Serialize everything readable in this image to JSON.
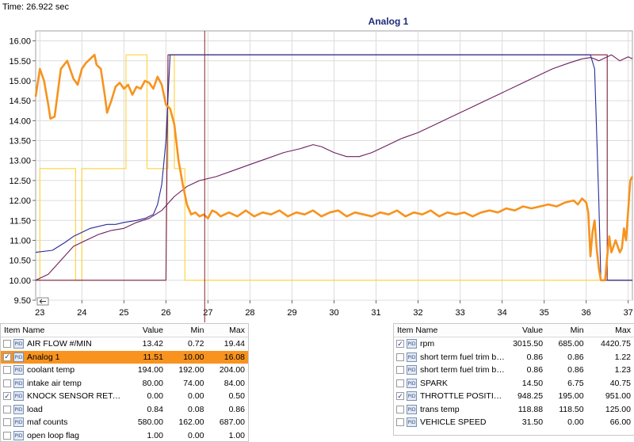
{
  "time_label": "Time: 26.922 sec",
  "chart_data": {
    "type": "line",
    "title": "Analog 1",
    "xlim": [
      22.9,
      37.1
    ],
    "ylim": [
      9.5,
      16.25
    ],
    "x_ticks": [
      "23",
      "24",
      "25",
      "26",
      "27",
      "28",
      "29",
      "30",
      "31",
      "32",
      "33",
      "34",
      "35",
      "36",
      "37"
    ],
    "y_ticks": [
      "9.50",
      "10.00",
      "10.50",
      "11.00",
      "11.50",
      "12.00",
      "12.50",
      "13.00",
      "13.50",
      "14.00",
      "14.50",
      "15.00",
      "15.50",
      "16.00"
    ],
    "cursor_x": 26.922,
    "grid": true,
    "colors": {
      "analog1": "#f7931e",
      "yellow": "#ffd23a",
      "blue": "#2a2a9a",
      "purple": "#6e1f5e",
      "maroon": "#7a2238"
    },
    "series": [
      {
        "key": "analog1",
        "points": [
          [
            22.9,
            14.6
          ],
          [
            23.0,
            15.3
          ],
          [
            23.1,
            15.0
          ],
          [
            23.2,
            14.4
          ],
          [
            23.25,
            14.05
          ],
          [
            23.35,
            14.1
          ],
          [
            23.5,
            15.3
          ],
          [
            23.65,
            15.5
          ],
          [
            23.8,
            15.05
          ],
          [
            23.9,
            14.9
          ],
          [
            24.0,
            15.3
          ],
          [
            24.1,
            15.45
          ],
          [
            24.2,
            15.55
          ],
          [
            24.3,
            15.65
          ],
          [
            24.35,
            15.4
          ],
          [
            24.45,
            15.3
          ],
          [
            24.55,
            14.6
          ],
          [
            24.6,
            14.2
          ],
          [
            24.7,
            14.5
          ],
          [
            24.8,
            14.85
          ],
          [
            24.9,
            14.95
          ],
          [
            25.0,
            14.8
          ],
          [
            25.1,
            14.9
          ],
          [
            25.2,
            14.65
          ],
          [
            25.3,
            14.85
          ],
          [
            25.4,
            14.8
          ],
          [
            25.5,
            15.0
          ],
          [
            25.6,
            14.95
          ],
          [
            25.7,
            14.8
          ],
          [
            25.8,
            15.1
          ],
          [
            25.9,
            14.9
          ],
          [
            26.0,
            14.4
          ],
          [
            26.1,
            14.3
          ],
          [
            26.2,
            13.9
          ],
          [
            26.3,
            13.0
          ],
          [
            26.4,
            12.4
          ],
          [
            26.5,
            11.9
          ],
          [
            26.6,
            11.65
          ],
          [
            26.7,
            11.7
          ],
          [
            26.8,
            11.6
          ],
          [
            26.9,
            11.65
          ],
          [
            27.0,
            11.55
          ],
          [
            27.1,
            11.75
          ],
          [
            27.2,
            11.7
          ],
          [
            27.3,
            11.6
          ],
          [
            27.5,
            11.7
          ],
          [
            27.7,
            11.6
          ],
          [
            27.9,
            11.75
          ],
          [
            28.1,
            11.6
          ],
          [
            28.3,
            11.7
          ],
          [
            28.5,
            11.65
          ],
          [
            28.7,
            11.75
          ],
          [
            28.9,
            11.6
          ],
          [
            29.1,
            11.7
          ],
          [
            29.3,
            11.65
          ],
          [
            29.5,
            11.75
          ],
          [
            29.7,
            11.6
          ],
          [
            29.9,
            11.7
          ],
          [
            30.1,
            11.75
          ],
          [
            30.3,
            11.6
          ],
          [
            30.5,
            11.7
          ],
          [
            30.7,
            11.65
          ],
          [
            30.9,
            11.6
          ],
          [
            31.1,
            11.7
          ],
          [
            31.3,
            11.65
          ],
          [
            31.5,
            11.75
          ],
          [
            31.7,
            11.6
          ],
          [
            31.9,
            11.7
          ],
          [
            32.1,
            11.65
          ],
          [
            32.3,
            11.75
          ],
          [
            32.5,
            11.6
          ],
          [
            32.7,
            11.7
          ],
          [
            32.9,
            11.65
          ],
          [
            33.1,
            11.7
          ],
          [
            33.3,
            11.6
          ],
          [
            33.5,
            11.7
          ],
          [
            33.7,
            11.75
          ],
          [
            33.9,
            11.7
          ],
          [
            34.1,
            11.8
          ],
          [
            34.3,
            11.75
          ],
          [
            34.5,
            11.85
          ],
          [
            34.7,
            11.8
          ],
          [
            34.9,
            11.85
          ],
          [
            35.1,
            11.9
          ],
          [
            35.3,
            11.85
          ],
          [
            35.5,
            11.95
          ],
          [
            35.7,
            12.0
          ],
          [
            35.8,
            11.9
          ],
          [
            35.9,
            12.05
          ],
          [
            36.0,
            11.95
          ],
          [
            36.05,
            11.7
          ],
          [
            36.1,
            10.6
          ],
          [
            36.15,
            11.2
          ],
          [
            36.2,
            11.5
          ],
          [
            36.25,
            10.8
          ],
          [
            36.3,
            10.3
          ],
          [
            36.35,
            10.0
          ],
          [
            36.45,
            10.0
          ],
          [
            36.5,
            10.6
          ],
          [
            36.55,
            11.1
          ],
          [
            36.6,
            10.7
          ],
          [
            36.7,
            11.0
          ],
          [
            36.8,
            10.7
          ],
          [
            36.85,
            10.8
          ],
          [
            36.9,
            11.3
          ],
          [
            36.95,
            11.0
          ],
          [
            37.05,
            12.5
          ],
          [
            37.1,
            12.6
          ]
        ]
      },
      {
        "key": "yellow",
        "points": [
          [
            22.9,
            10.0
          ],
          [
            23.0,
            10.0
          ],
          [
            23.0,
            12.8
          ],
          [
            23.85,
            12.8
          ],
          [
            23.85,
            10.0
          ],
          [
            24.0,
            10.0
          ],
          [
            24.0,
            12.8
          ],
          [
            25.05,
            12.8
          ],
          [
            25.05,
            15.65
          ],
          [
            25.55,
            15.65
          ],
          [
            25.55,
            12.8
          ],
          [
            26.05,
            12.8
          ],
          [
            26.05,
            15.65
          ],
          [
            26.2,
            15.65
          ],
          [
            26.2,
            12.8
          ],
          [
            26.45,
            12.8
          ],
          [
            26.45,
            10.0
          ],
          [
            37.1,
            10.0
          ]
        ]
      },
      {
        "key": "blue",
        "points": [
          [
            22.9,
            10.7
          ],
          [
            23.3,
            10.75
          ],
          [
            23.6,
            10.95
          ],
          [
            23.8,
            11.1
          ],
          [
            24.0,
            11.2
          ],
          [
            24.2,
            11.3
          ],
          [
            24.4,
            11.35
          ],
          [
            24.6,
            11.4
          ],
          [
            24.8,
            11.4
          ],
          [
            25.0,
            11.45
          ],
          [
            25.3,
            11.5
          ],
          [
            25.5,
            11.55
          ],
          [
            25.7,
            11.65
          ],
          [
            25.8,
            11.9
          ],
          [
            25.9,
            12.4
          ],
          [
            26.0,
            13.5
          ],
          [
            26.05,
            14.6
          ],
          [
            26.1,
            15.65
          ],
          [
            36.1,
            15.65
          ],
          [
            36.2,
            15.3
          ],
          [
            36.3,
            12.0
          ],
          [
            36.35,
            10.0
          ],
          [
            37.1,
            10.0
          ]
        ]
      },
      {
        "key": "purple",
        "points": [
          [
            22.9,
            10.0
          ],
          [
            23.2,
            10.15
          ],
          [
            23.5,
            10.5
          ],
          [
            23.8,
            10.85
          ],
          [
            24.1,
            11.0
          ],
          [
            24.4,
            11.15
          ],
          [
            24.7,
            11.25
          ],
          [
            25.0,
            11.3
          ],
          [
            25.3,
            11.45
          ],
          [
            25.6,
            11.55
          ],
          [
            25.9,
            11.75
          ],
          [
            26.2,
            12.1
          ],
          [
            26.5,
            12.35
          ],
          [
            26.8,
            12.5
          ],
          [
            27.2,
            12.6
          ],
          [
            27.6,
            12.75
          ],
          [
            28.0,
            12.9
          ],
          [
            28.4,
            13.05
          ],
          [
            28.8,
            13.2
          ],
          [
            29.2,
            13.3
          ],
          [
            29.5,
            13.4
          ],
          [
            29.7,
            13.35
          ],
          [
            30.0,
            13.2
          ],
          [
            30.3,
            13.1
          ],
          [
            30.6,
            13.1
          ],
          [
            30.9,
            13.2
          ],
          [
            31.2,
            13.35
          ],
          [
            31.6,
            13.55
          ],
          [
            32.0,
            13.7
          ],
          [
            32.4,
            13.9
          ],
          [
            32.8,
            14.1
          ],
          [
            33.2,
            14.3
          ],
          [
            33.6,
            14.5
          ],
          [
            34.0,
            14.7
          ],
          [
            34.4,
            14.9
          ],
          [
            34.8,
            15.1
          ],
          [
            35.2,
            15.3
          ],
          [
            35.6,
            15.45
          ],
          [
            35.9,
            15.55
          ],
          [
            36.1,
            15.58
          ],
          [
            36.2,
            15.55
          ],
          [
            36.3,
            15.5
          ],
          [
            36.4,
            15.55
          ],
          [
            36.6,
            15.65
          ],
          [
            36.8,
            15.5
          ],
          [
            37.0,
            15.6
          ],
          [
            37.1,
            15.55
          ]
        ]
      },
      {
        "key": "maroon",
        "points": [
          [
            22.9,
            10.0
          ],
          [
            26.0,
            10.0
          ],
          [
            26.05,
            15.65
          ],
          [
            36.5,
            15.65
          ],
          [
            36.5,
            10.0
          ],
          [
            37.1,
            10.0
          ]
        ]
      }
    ]
  },
  "left_table": {
    "headers": [
      "Item Name",
      "Value",
      "Min",
      "Max"
    ],
    "rows": [
      {
        "name": "AIR FLOW #/MIN",
        "value": "13.42",
        "min": "0.72",
        "max": "19.44",
        "checked": false,
        "selected": false
      },
      {
        "name": "Analog 1",
        "value": "11.51",
        "min": "10.00",
        "max": "16.08",
        "checked": true,
        "selected": true
      },
      {
        "name": "coolant temp",
        "value": "194.00",
        "min": "192.00",
        "max": "204.00",
        "checked": false,
        "selected": false
      },
      {
        "name": "intake air temp",
        "value": "80.00",
        "min": "74.00",
        "max": "84.00",
        "checked": false,
        "selected": false
      },
      {
        "name": "KNOCK SENSOR RETA...",
        "value": "0.00",
        "min": "0.00",
        "max": "0.50",
        "checked": true,
        "selected": false
      },
      {
        "name": "load",
        "value": "0.84",
        "min": "0.08",
        "max": "0.86",
        "checked": false,
        "selected": false
      },
      {
        "name": "maf counts",
        "value": "580.00",
        "min": "162.00",
        "max": "687.00",
        "checked": false,
        "selected": false
      },
      {
        "name": "open loop flag",
        "value": "1.00",
        "min": "0.00",
        "max": "1.00",
        "checked": false,
        "selected": false
      }
    ]
  },
  "right_table": {
    "headers": [
      "Item Name",
      "Value",
      "Min",
      "Max"
    ],
    "rows": [
      {
        "name": "rpm",
        "value": "3015.50",
        "min": "685.00",
        "max": "4420.75",
        "checked": true
      },
      {
        "name": "short term fuel trim ba...",
        "value": "0.86",
        "min": "0.86",
        "max": "1.22",
        "checked": false
      },
      {
        "name": "short term fuel trim ba...",
        "value": "0.86",
        "min": "0.86",
        "max": "1.23",
        "checked": false
      },
      {
        "name": "SPARK",
        "value": "14.50",
        "min": "6.75",
        "max": "40.75",
        "checked": false
      },
      {
        "name": "THROTTLE POSITION ...",
        "value": "948.25",
        "min": "195.00",
        "max": "951.00",
        "checked": true
      },
      {
        "name": "trans temp",
        "value": "118.88",
        "min": "118.50",
        "max": "125.00",
        "checked": false
      },
      {
        "name": "VEHICLE SPEED",
        "value": "31.50",
        "min": "0.00",
        "max": "66.00",
        "checked": false
      }
    ]
  },
  "icons": {
    "checkbox": "checkbox-icon",
    "pid": "pid-icon",
    "scroll_left": "scroll-left-arrow-icon"
  }
}
